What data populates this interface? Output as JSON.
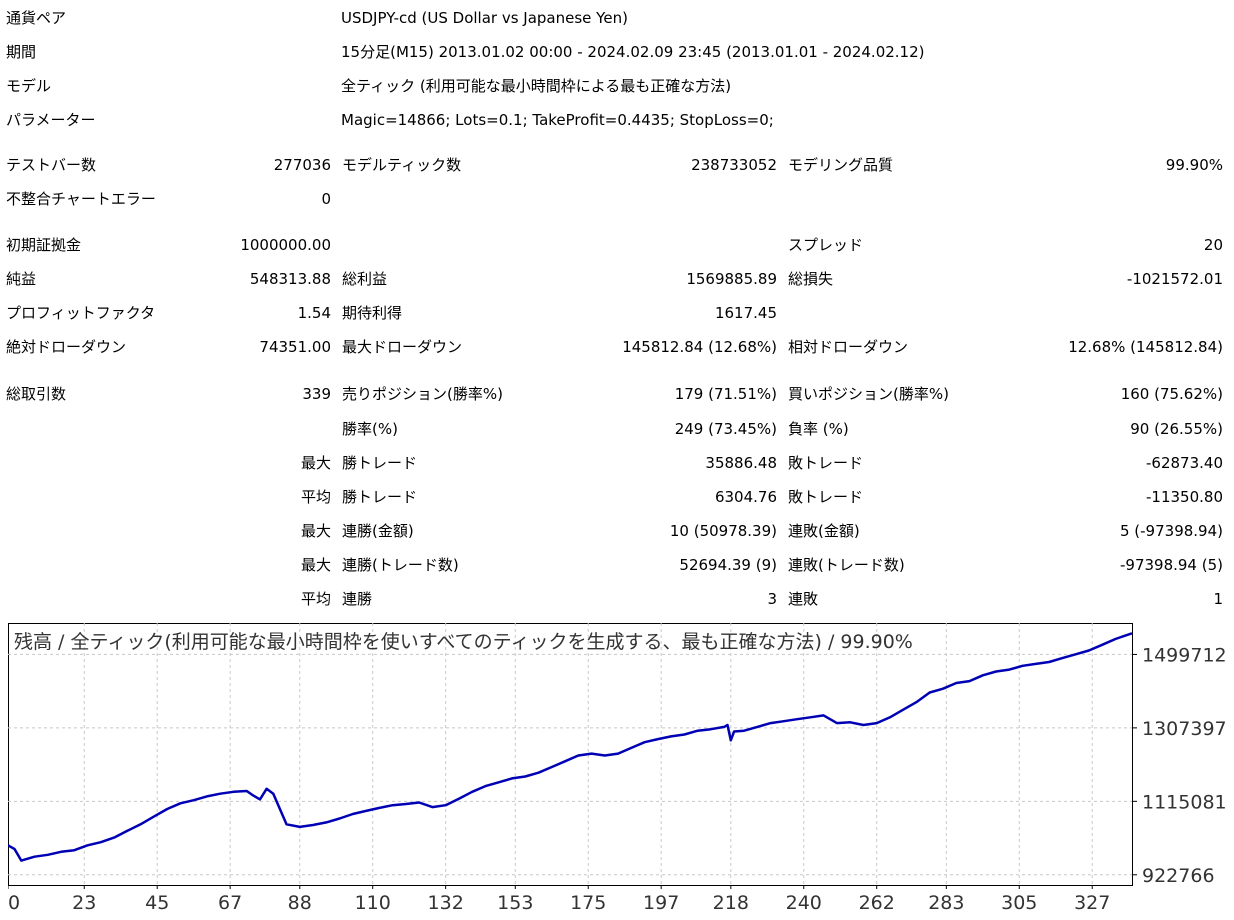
{
  "report": {
    "info": [
      {
        "label": "通貨ペア",
        "value": "USDJPY-cd (US Dollar vs Japanese Yen)"
      },
      {
        "label": "期間",
        "value": "15分足(M15) 2013.01.02 00:00 - 2024.02.09 23:45 (2013.01.01 - 2024.02.12)"
      },
      {
        "label": "モデル",
        "value": "全ティック (利用可能な最小時間枠による最も正確な方法)"
      },
      {
        "label": "パラメーター",
        "value": "Magic=14866; Lots=0.1; TakeProfit=0.4435; StopLoss=0;"
      }
    ],
    "stats": [
      {
        "label": "テストバー数",
        "value": "277036",
        "label2": "モデルティック数",
        "value2": "238733052",
        "label3": "モデリング品質",
        "value3": "99.90%"
      },
      {
        "label": "不整合チャートエラー",
        "value": "0",
        "label2": "",
        "value2": "",
        "label3": "",
        "value3": ""
      },
      {
        "label": "初期証拠金",
        "value": "1000000.00",
        "label2": "",
        "value2": "",
        "label3": "スプレッド",
        "value3": "20"
      },
      {
        "label": "純益",
        "value": "548313.88",
        "label2": "総利益",
        "value2": "1569885.89",
        "label3": "総損失",
        "value3": "-1021572.01"
      },
      {
        "label": "プロフィットファクタ",
        "value": "1.54",
        "label2": "期待利得",
        "value2": "1617.45",
        "label3": "",
        "value3": ""
      },
      {
        "label": "絶対ドローダウン",
        "value": "74351.00",
        "label2": "最大ドローダウン",
        "value2": "145812.84 (12.68%)",
        "label3": "相対ドローダウン",
        "value3": "12.68% (145812.84)"
      },
      {
        "label": "総取引数",
        "value": "339",
        "label2": "売りポジション(勝率%)",
        "value2": "179 (71.51%)",
        "label3": "買いポジション(勝率%)",
        "value3": "160 (75.62%)"
      },
      {
        "label": "",
        "value": "",
        "label2": "勝率(%)",
        "value2": "249 (73.45%)",
        "label3": "負率 (%)",
        "value3": "90 (26.55%)"
      },
      {
        "label": "",
        "value": "最大",
        "label2": "勝トレード",
        "value2": "35886.48",
        "label3": "敗トレード",
        "value3": "-62873.40"
      },
      {
        "label": "",
        "value": "平均",
        "label2": "勝トレード",
        "value2": "6304.76",
        "label3": "敗トレード",
        "value3": "-11350.80"
      },
      {
        "label": "",
        "value": "最大",
        "label2": "連勝(金額)",
        "value2": "10 (50978.39)",
        "label3": "連敗(金額)",
        "value3": "5 (-97398.94)"
      },
      {
        "label": "",
        "value": "最大",
        "label2": "連勝(トレード数)",
        "value2": "52694.39 (9)",
        "label3": "連敗(トレード数)",
        "value3": "-97398.94 (5)"
      },
      {
        "label": "",
        "value": "平均",
        "label2": "連勝",
        "value2": "3",
        "label3": "連敗",
        "value3": "1"
      }
    ]
  },
  "chart_data": {
    "type": "line",
    "title": "残高 / 全ティック(利用可能な最小時間枠を使いすべてのティックを生成する、最も正確な方法) / 99.90%",
    "xlabel": "",
    "ylabel": "",
    "x_ticks": [
      "0",
      "23",
      "45",
      "67",
      "88",
      "110",
      "132",
      "153",
      "175",
      "197",
      "218",
      "240",
      "262",
      "283",
      "305",
      "327"
    ],
    "y_ticks": [
      "1499712",
      "1307397",
      "1115081",
      "922766"
    ],
    "xlim": [
      0,
      339
    ],
    "ylim": [
      896000,
      1582000
    ],
    "grid": true,
    "legend": "none",
    "line_color": "#0000b4",
    "series": [
      {
        "x": [
          0,
          2,
          4,
          8,
          12,
          16,
          20,
          24,
          28,
          32,
          36,
          40,
          44,
          48,
          52,
          56,
          60,
          64,
          68,
          72,
          74,
          76,
          78,
          80,
          84,
          88,
          92,
          96,
          100,
          104,
          108,
          112,
          116,
          120,
          124,
          128,
          132,
          136,
          140,
          144,
          148,
          152,
          156,
          160,
          164,
          168,
          172,
          176,
          180,
          184,
          188,
          192,
          196,
          200,
          204,
          208,
          212,
          216,
          217,
          218,
          219,
          222,
          226,
          230,
          234,
          238,
          242,
          246,
          250,
          254,
          258,
          262,
          266,
          270,
          274,
          278,
          282,
          286,
          290,
          294,
          298,
          302,
          306,
          310,
          314,
          318,
          322,
          326,
          330,
          334,
          339
        ],
        "values": [
          1000000,
          990000,
          960000,
          970000,
          975000,
          983000,
          987000,
          1000000,
          1008000,
          1020000,
          1038000,
          1055000,
          1075000,
          1095000,
          1110000,
          1118000,
          1128000,
          1135000,
          1140000,
          1142000,
          1130000,
          1120000,
          1148000,
          1135000,
          1055000,
          1048000,
          1053000,
          1060000,
          1070000,
          1082000,
          1090000,
          1098000,
          1105000,
          1108000,
          1112000,
          1100000,
          1105000,
          1122000,
          1140000,
          1155000,
          1165000,
          1175000,
          1180000,
          1190000,
          1205000,
          1220000,
          1235000,
          1240000,
          1235000,
          1240000,
          1255000,
          1270000,
          1278000,
          1285000,
          1290000,
          1300000,
          1304000,
          1310000,
          1315000,
          1275000,
          1298000,
          1300000,
          1310000,
          1320000,
          1325000,
          1330000,
          1335000,
          1340000,
          1320000,
          1322000,
          1315000,
          1320000,
          1335000,
          1355000,
          1375000,
          1400000,
          1410000,
          1425000,
          1430000,
          1445000,
          1455000,
          1460000,
          1470000,
          1475000,
          1480000,
          1490000,
          1500000,
          1510000,
          1525000,
          1540000,
          1555000
        ]
      }
    ]
  }
}
